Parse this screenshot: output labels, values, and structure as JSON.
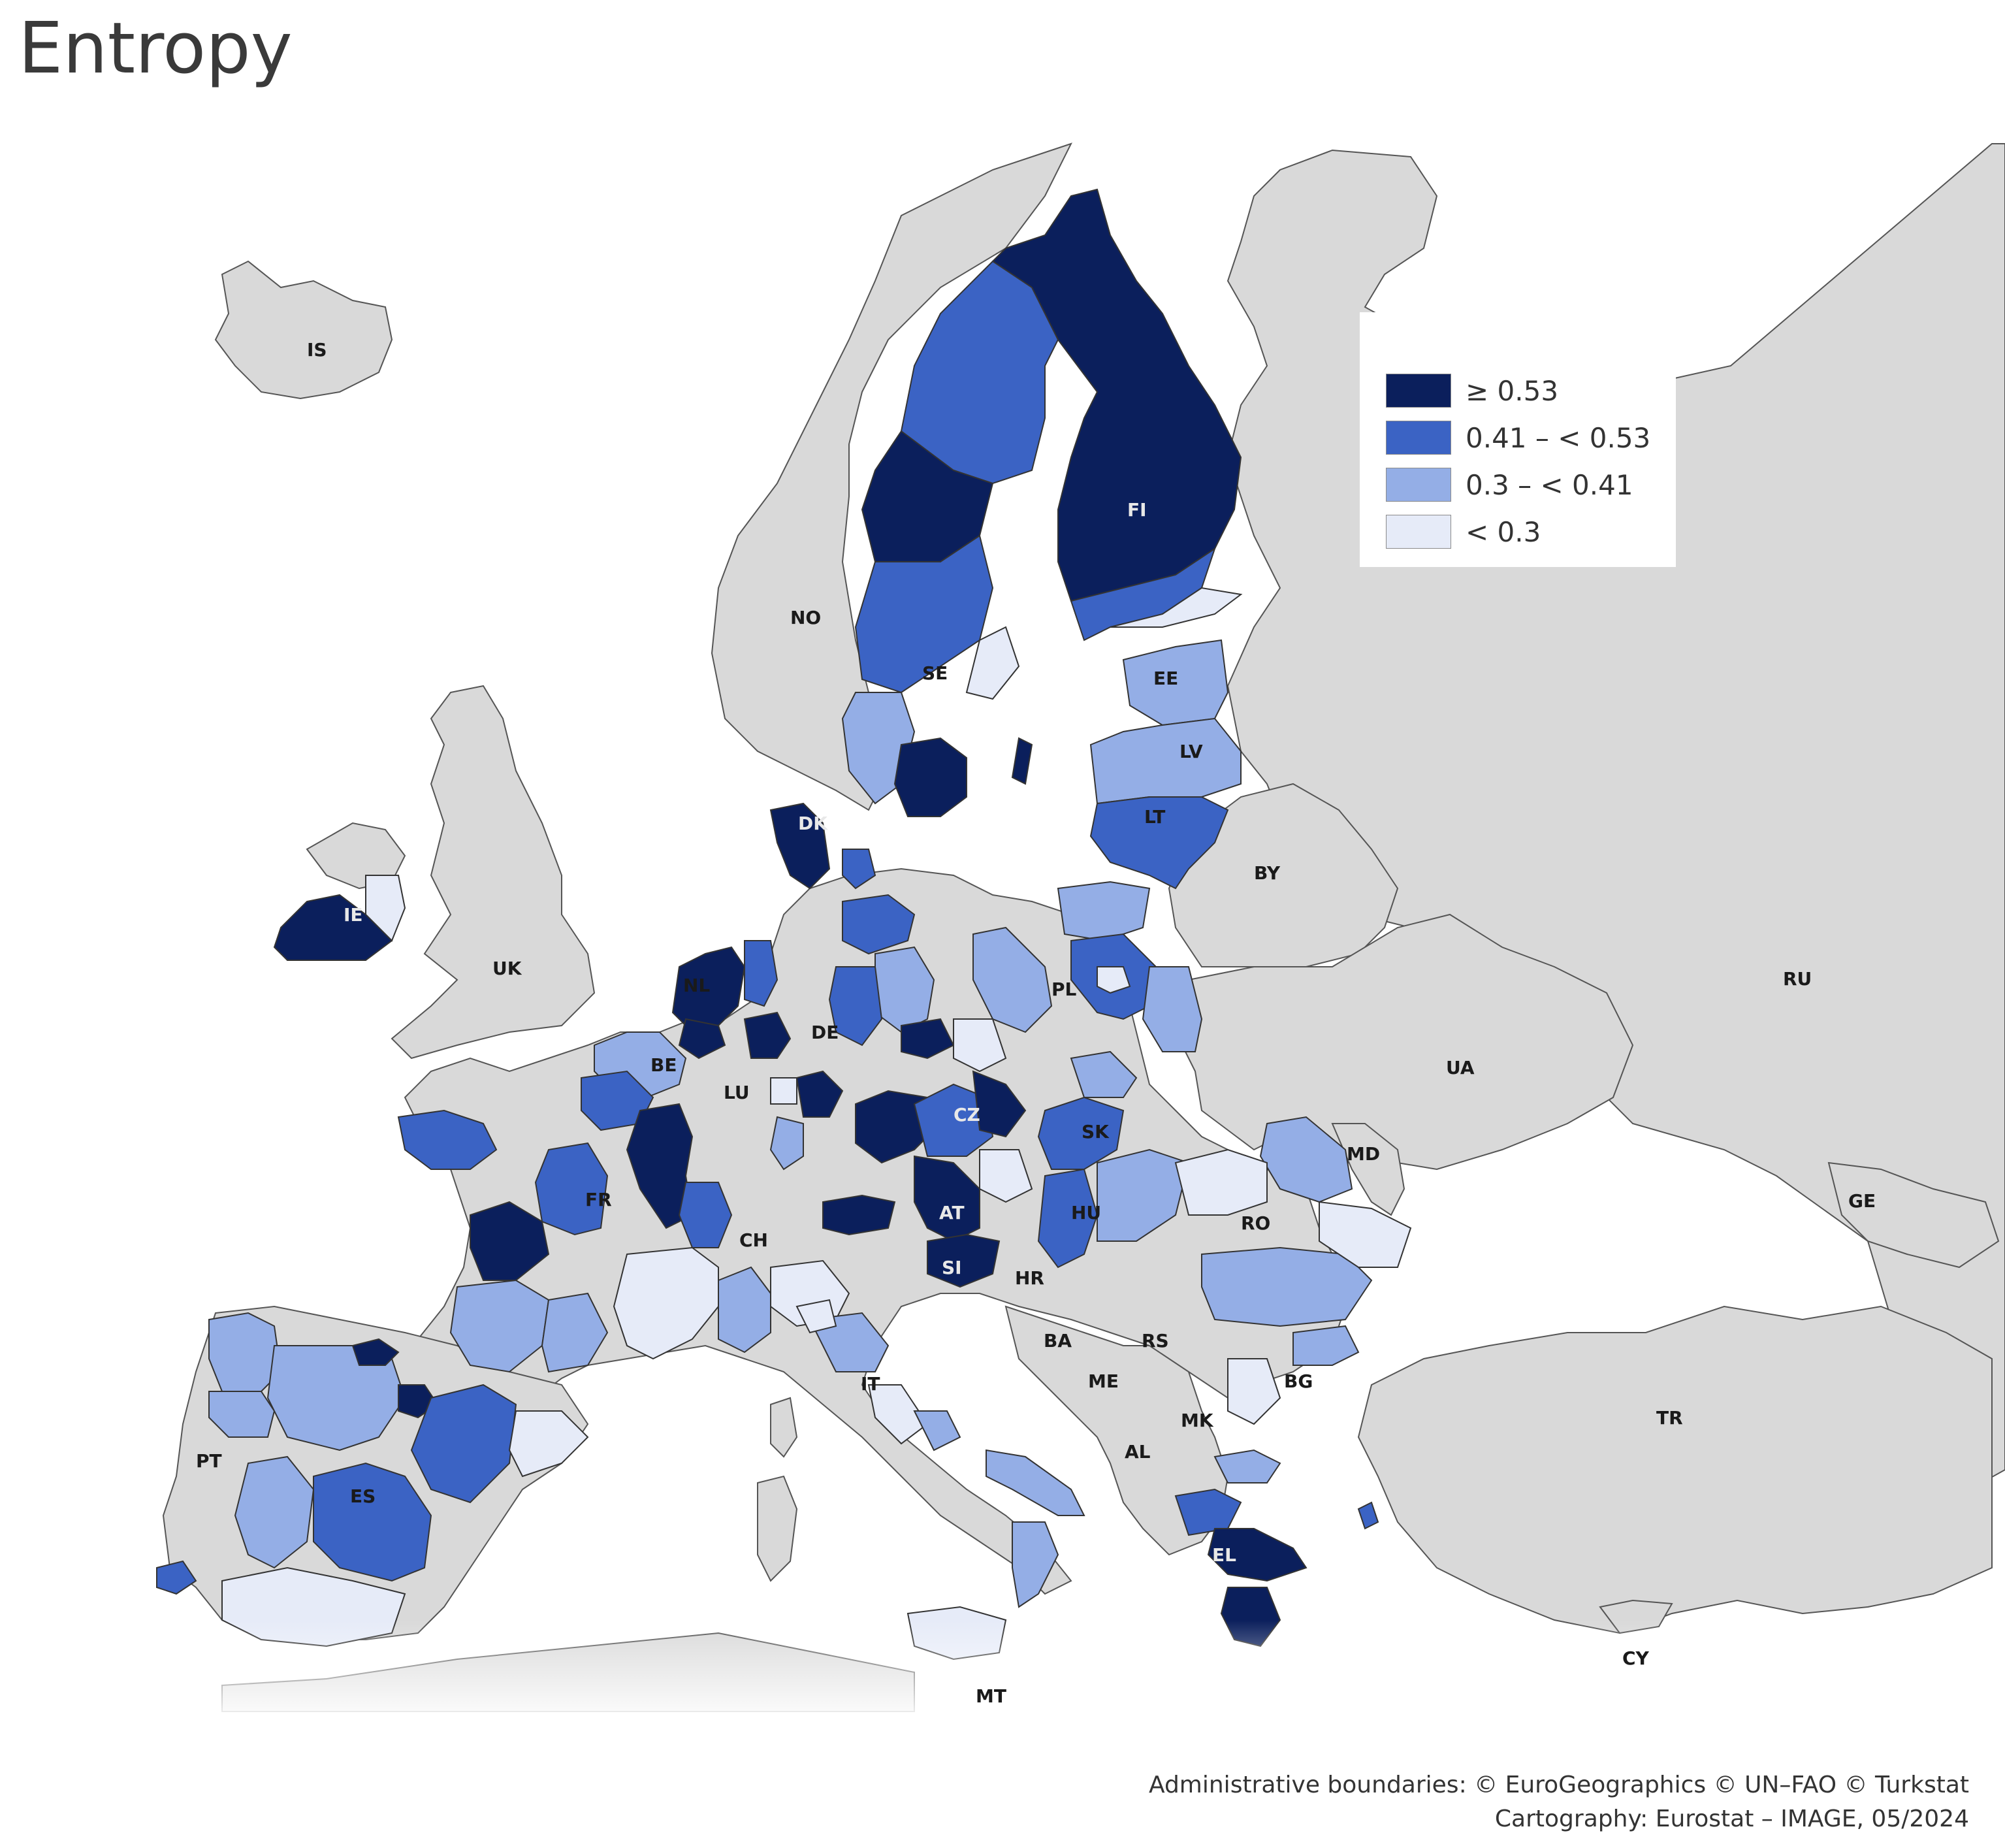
{
  "title": "Entropy",
  "legend": {
    "items": [
      {
        "label": "≥ 0.53",
        "color": "#0b1f5c"
      },
      {
        "label": "0.41 – < 0.53",
        "color": "#3b63c4"
      },
      {
        "label": "0.3 – < 0.41",
        "color": "#94aee6"
      },
      {
        "label": "< 0.3",
        "color": "#e6ebf8"
      }
    ]
  },
  "colors": {
    "no_data": "#d9d9d9",
    "sea": "#ffffff",
    "border": "#555555"
  },
  "country_labels": {
    "IS": "IS",
    "NO": "NO",
    "SE": "SE",
    "FI": "FI",
    "EE": "EE",
    "LV": "LV",
    "LT": "LT",
    "DK": "DK",
    "IE": "IE",
    "UK": "UK",
    "NL": "NL",
    "BE": "BE",
    "LU": "LU",
    "DE": "DE",
    "PL": "PL",
    "BY": "BY",
    "RU": "RU",
    "UA": "UA",
    "CZ": "CZ",
    "SK": "SK",
    "MD": "MD",
    "FR": "FR",
    "CH": "CH",
    "AT": "AT",
    "HU": "HU",
    "RO": "RO",
    "GE": "GE",
    "SI": "SI",
    "HR": "HR",
    "BA": "BA",
    "RS": "RS",
    "BG": "BG",
    "ME": "ME",
    "MK": "MK",
    "IT": "IT",
    "AL": "AL",
    "TR": "TR",
    "PT": "PT",
    "ES": "ES",
    "EL": "EL",
    "CY": "CY",
    "MT": "MT"
  },
  "credits": {
    "line1": "Administrative boundaries: © EuroGeographics © UN–FAO © Turkstat",
    "line2": "Cartography: Eurostat – IMAGE, 05/2024"
  }
}
